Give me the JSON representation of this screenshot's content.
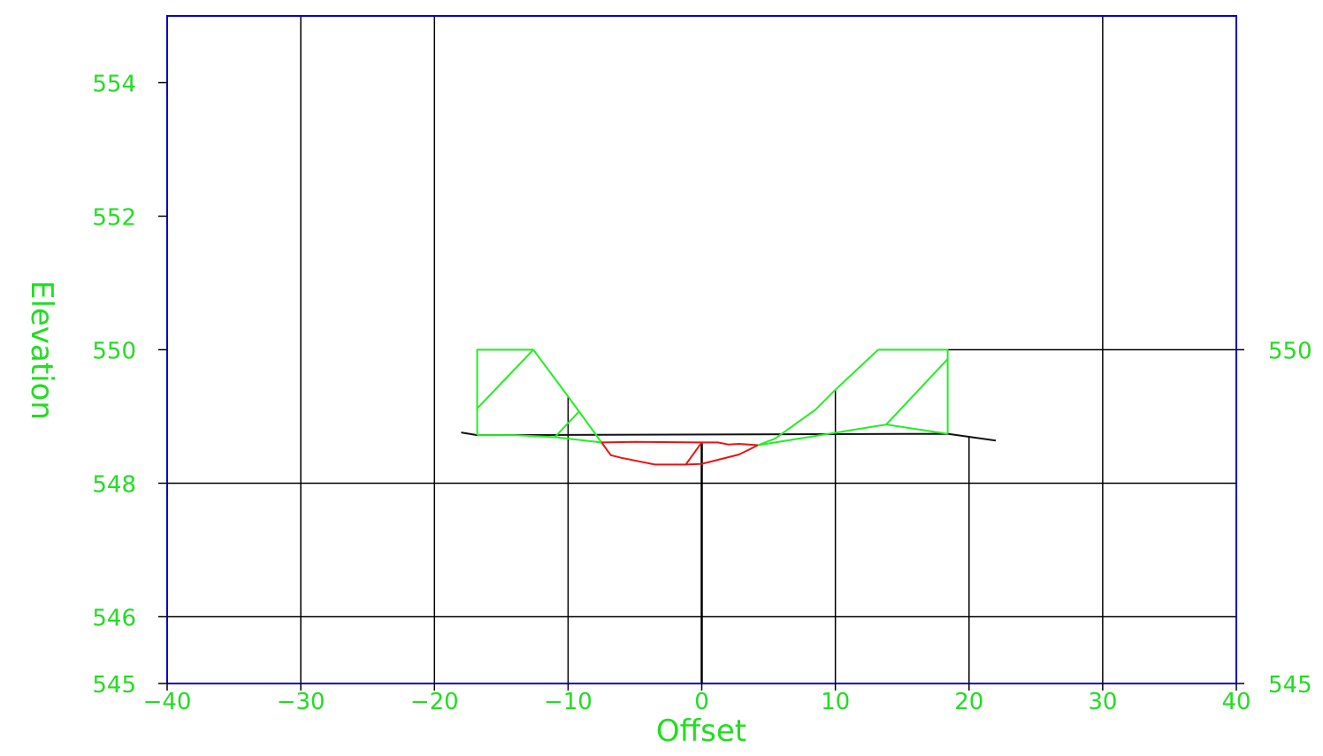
{
  "chart_data": {
    "type": "line",
    "title": "",
    "xlabel": "Offset",
    "ylabel": "Elevation",
    "xlim": [
      -40,
      40
    ],
    "ylim": [
      545,
      555
    ],
    "x_ticks": [
      -40,
      -30,
      -20,
      -10,
      0,
      10,
      20,
      30,
      40
    ],
    "x_tick_labels": [
      "−40",
      "−30",
      "−20",
      "−10",
      "0",
      "10",
      "20",
      "30",
      "40"
    ],
    "y_ticks_left": [
      545,
      546,
      548,
      550,
      552,
      554
    ],
    "y_tick_labels_left": [
      "545",
      "546",
      "548",
      "550",
      "552",
      "554"
    ],
    "y_ticks_right": [
      545,
      550
    ],
    "y_tick_labels_right": [
      "545",
      "550"
    ],
    "grid": {
      "vertical_full": [
        -30,
        -20,
        30
      ],
      "horizontal_full": [
        546,
        548
      ],
      "horizontal_partial": {
        "y": 550,
        "x_from": 18.4
      },
      "vertical_stubs": [
        {
          "x": -10,
          "top": 549.3
        },
        {
          "x": 10,
          "top": 549.4
        },
        {
          "x": 20,
          "top": 548.7
        }
      ]
    },
    "colors": {
      "frame": "#0000cc",
      "grid": "#000000",
      "text": "#22dd22",
      "design": "#22ee22",
      "channel": "#ee1111",
      "existing": "#111111"
    },
    "series": [
      {
        "role": "existing-ground",
        "color": "#111111",
        "points": [
          [
            -18,
            548.76
          ],
          [
            -16.8,
            548.72
          ],
          [
            18.4,
            548.74
          ],
          [
            22,
            548.64
          ]
        ]
      },
      {
        "role": "design-ground",
        "color": "#22ee22",
        "points": [
          [
            -16.8,
            548.72
          ],
          [
            -14,
            548.72
          ],
          [
            -11,
            548.69
          ],
          [
            -7.5,
            548.61
          ]
        ]
      },
      {
        "role": "design-ground",
        "color": "#22ee22",
        "points": [
          [
            4.2,
            548.57
          ],
          [
            13.8,
            548.88
          ],
          [
            18.4,
            548.74
          ]
        ]
      },
      {
        "role": "left-box",
        "color": "#22ee22",
        "points": [
          [
            -16.8,
            548.72
          ],
          [
            -16.8,
            550
          ],
          [
            -12.6,
            550
          ]
        ]
      },
      {
        "role": "left-slope",
        "color": "#22ee22",
        "points": [
          [
            -12.6,
            550
          ],
          [
            -10,
            549.3
          ],
          [
            -7.5,
            548.61
          ]
        ]
      },
      {
        "role": "left-diagonal",
        "color": "#22ee22",
        "points": [
          [
            -16.8,
            549.12
          ],
          [
            -12.6,
            550
          ]
        ]
      },
      {
        "role": "left-small-diagonal",
        "color": "#22ee22",
        "points": [
          [
            -11,
            548.69
          ],
          [
            -9.2,
            549.07
          ]
        ]
      },
      {
        "role": "right-slope",
        "color": "#22ee22",
        "points": [
          [
            4.2,
            548.57
          ],
          [
            5.5,
            548.67
          ],
          [
            8.5,
            549.1
          ],
          [
            10,
            549.4
          ],
          [
            13.2,
            550
          ]
        ]
      },
      {
        "role": "right-box",
        "color": "#22ee22",
        "points": [
          [
            13.2,
            550
          ],
          [
            18.4,
            550
          ],
          [
            18.4,
            548.74
          ]
        ]
      },
      {
        "role": "right-diagonal",
        "color": "#22ee22",
        "points": [
          [
            13.8,
            548.88
          ],
          [
            18.4,
            549.86
          ]
        ]
      },
      {
        "role": "channel-top",
        "color": "#ee1111",
        "points": [
          [
            -7.5,
            548.61
          ],
          [
            -5,
            548.62
          ],
          [
            0,
            548.61
          ],
          [
            1.2,
            548.61
          ],
          [
            2,
            548.58
          ],
          [
            2.8,
            548.59
          ],
          [
            4.2,
            548.57
          ]
        ]
      },
      {
        "role": "channel-bottom",
        "color": "#ee1111",
        "points": [
          [
            -7.5,
            548.61
          ],
          [
            -6.8,
            548.42
          ],
          [
            -6,
            548.38
          ],
          [
            -3.5,
            548.28
          ],
          [
            -1.2,
            548.28
          ],
          [
            0,
            548.29
          ],
          [
            2.8,
            548.43
          ],
          [
            4.2,
            548.57
          ]
        ]
      },
      {
        "role": "channel-diagonal",
        "color": "#ee1111",
        "points": [
          [
            -1.2,
            548.28
          ],
          [
            0,
            548.61
          ]
        ]
      }
    ],
    "centerline": {
      "x": 0,
      "from": 545,
      "to": 548.6
    }
  }
}
